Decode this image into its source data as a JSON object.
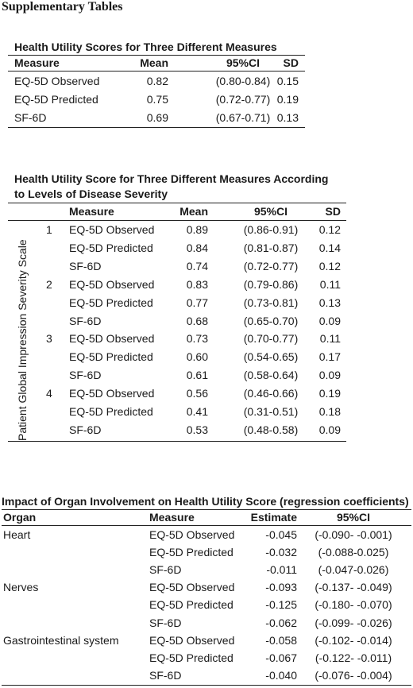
{
  "page_title": "Supplementary Tables",
  "table1": {
    "title": "Health Utility Scores for Three Different Measures",
    "headers": [
      "Measure",
      "Mean",
      "95%CI",
      "SD"
    ],
    "rows": [
      [
        "EQ-5D Observed",
        "0.82",
        "(0.80-0.84)",
        "0.15"
      ],
      [
        "EQ-5D Predicted",
        "0.75",
        "(0.72-0.77)",
        "0.19"
      ],
      [
        "SF-6D",
        "0.69",
        "(0.67-0.71)",
        "0.13"
      ]
    ]
  },
  "table2": {
    "title_line1": "Health Utility Score for Three Different Measures According",
    "title_line2": "to Levels of Disease Severity",
    "side_label": "Patient Global Impression Severity Scale",
    "headers": [
      "Measure",
      "Mean",
      "95%CI",
      "SD"
    ],
    "rows": [
      [
        "1",
        "EQ-5D Observed",
        "0.89",
        "(0.86-0.91)",
        "0.12"
      ],
      [
        "",
        "EQ-5D Predicted",
        "0.84",
        "(0.81-0.87)",
        "0.14"
      ],
      [
        "",
        "SF-6D",
        "0.74",
        "(0.72-0.77)",
        "0.12"
      ],
      [
        "2",
        "EQ-5D Observed",
        "0.83",
        "(0.79-0.86)",
        "0.11"
      ],
      [
        "",
        "EQ-5D Predicted",
        "0.77",
        "(0.73-0.81)",
        "0.13"
      ],
      [
        "",
        "SF-6D",
        "0.68",
        "(0.65-0.70)",
        "0.09"
      ],
      [
        "3",
        "EQ-5D Observed",
        "0.73",
        "(0.70-0.77)",
        "0.11"
      ],
      [
        "",
        "EQ-5D Predicted",
        "0.60",
        "(0.54-0.65)",
        "0.17"
      ],
      [
        "",
        "SF-6D",
        "0.61",
        "(0.58-0.64)",
        "0.09"
      ],
      [
        "4",
        "EQ-5D Observed",
        "0.56",
        "(0.46-0.66)",
        "0.19"
      ],
      [
        "",
        "EQ-5D Predicted",
        "0.41",
        "(0.31-0.51)",
        "0.18"
      ],
      [
        "",
        "SF-6D",
        "0.53",
        "(0.48-0.58)",
        "0.09"
      ]
    ]
  },
  "table3": {
    "title": "Impact of Organ Involvement on Health Utility Score (regression coefficients)",
    "headers": [
      "Organ",
      "Measure",
      "Estimate",
      "95%CI"
    ],
    "rows": [
      [
        "Heart",
        "EQ-5D Observed",
        "-0.045",
        "(-0.090- -0.001)"
      ],
      [
        "",
        "EQ-5D Predicted",
        "-0.032",
        "(-0.088-0.025)"
      ],
      [
        "",
        "SF-6D",
        "-0.011",
        "(-0.047-0.026)"
      ],
      [
        "Nerves",
        "EQ-5D Observed",
        "-0.093",
        "(-0.137- -0.049)"
      ],
      [
        "",
        "EQ-5D Predicted",
        "-0.125",
        "(-0.180- -0.070)"
      ],
      [
        "",
        "SF-6D",
        "-0.062",
        "(-0.099- -0.026)"
      ],
      [
        "Gastrointestinal system",
        "EQ-5D Observed",
        "-0.058",
        "(-0.102- -0.014)"
      ],
      [
        "",
        "EQ-5D Predicted",
        "-0.067",
        "(-0.122- -0.011)"
      ],
      [
        "",
        "SF-6D",
        "-0.040",
        "(-0.076- -0.004)"
      ]
    ]
  }
}
